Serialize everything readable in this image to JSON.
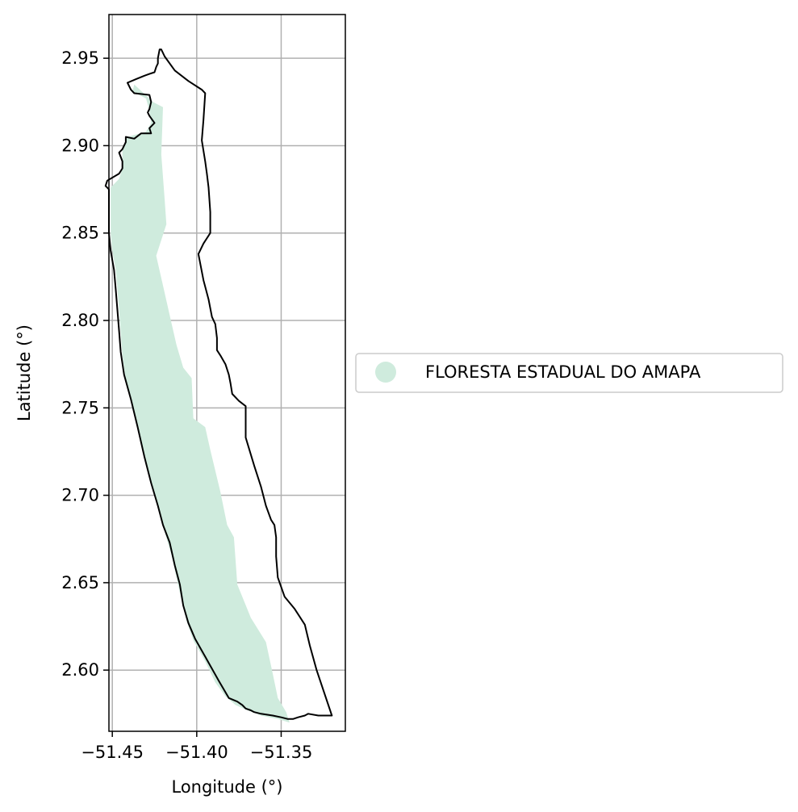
{
  "chart_data": {
    "type": "map",
    "xlabel": "Longitude (°)",
    "ylabel": "Latitude (°)",
    "xlim": [
      -51.452,
      -51.312
    ],
    "ylim": [
      2.565,
      2.975
    ],
    "x_ticks": [
      {
        "value": -51.45,
        "label": "−51.45"
      },
      {
        "value": -51.4,
        "label": "−51.40"
      },
      {
        "value": -51.35,
        "label": "−51.35"
      }
    ],
    "y_ticks": [
      {
        "value": 2.6,
        "label": "2.60"
      },
      {
        "value": 2.65,
        "label": "2.65"
      },
      {
        "value": 2.7,
        "label": "2.70"
      },
      {
        "value": 2.75,
        "label": "2.75"
      },
      {
        "value": 2.8,
        "label": "2.80"
      },
      {
        "value": 2.85,
        "label": "2.85"
      },
      {
        "value": 2.9,
        "label": "2.90"
      },
      {
        "value": 2.95,
        "label": "2.95"
      }
    ],
    "grid": true,
    "legend": {
      "placement": "right",
      "entries": [
        {
          "label": "FLORESTA ESTADUAL DO AMAPA",
          "color": "#cfebdd"
        }
      ]
    },
    "layers": [
      {
        "name": "boundary",
        "color": "#000000",
        "fill": "none",
        "coords": [
          [
            -51.421,
            2.955
          ],
          [
            -51.419,
            2.951
          ],
          [
            -51.413,
            2.943
          ],
          [
            -51.405,
            2.937
          ],
          [
            -51.397,
            2.932
          ],
          [
            -51.395,
            2.93
          ],
          [
            -51.396,
            2.915
          ],
          [
            -51.397,
            2.903
          ],
          [
            -51.395,
            2.891
          ],
          [
            -51.394,
            2.884
          ],
          [
            -51.393,
            2.876
          ],
          [
            -51.392,
            2.862
          ],
          [
            -51.392,
            2.85
          ],
          [
            -51.396,
            2.844
          ],
          [
            -51.399,
            2.838
          ],
          [
            -51.398,
            2.833
          ],
          [
            -51.396,
            2.823
          ],
          [
            -51.393,
            2.812
          ],
          [
            -51.391,
            2.802
          ],
          [
            -51.389,
            2.798
          ],
          [
            -51.388,
            2.79
          ],
          [
            -51.388,
            2.783
          ],
          [
            -51.386,
            2.78
          ],
          [
            -51.383,
            2.775
          ],
          [
            -51.381,
            2.769
          ],
          [
            -51.38,
            2.764
          ],
          [
            -51.379,
            2.758
          ],
          [
            -51.375,
            2.754
          ],
          [
            -51.371,
            2.751
          ],
          [
            -51.371,
            2.733
          ],
          [
            -51.366,
            2.717
          ],
          [
            -51.362,
            2.705
          ],
          [
            -51.359,
            2.694
          ],
          [
            -51.356,
            2.686
          ],
          [
            -51.354,
            2.683
          ],
          [
            -51.353,
            2.676
          ],
          [
            -51.353,
            2.665
          ],
          [
            -51.352,
            2.653
          ],
          [
            -51.348,
            2.642
          ],
          [
            -51.342,
            2.635
          ],
          [
            -51.336,
            2.626
          ],
          [
            -51.333,
            2.614
          ],
          [
            -51.329,
            2.6
          ],
          [
            -51.32,
            2.574
          ],
          [
            -51.328,
            2.574
          ],
          [
            -51.334,
            2.575
          ],
          [
            -51.336,
            2.574
          ],
          [
            -51.34,
            2.573
          ],
          [
            -51.343,
            2.572
          ],
          [
            -51.346,
            2.572
          ],
          [
            -51.35,
            2.573
          ],
          [
            -51.355,
            2.574
          ],
          [
            -51.362,
            2.575
          ],
          [
            -51.366,
            2.576
          ],
          [
            -51.368,
            2.577
          ],
          [
            -51.371,
            2.578
          ],
          [
            -51.373,
            2.58
          ],
          [
            -51.376,
            2.582
          ],
          [
            -51.381,
            2.584
          ],
          [
            -51.387,
            2.594
          ],
          [
            -51.394,
            2.606
          ],
          [
            -51.401,
            2.618
          ],
          [
            -51.405,
            2.627
          ],
          [
            -51.408,
            2.637
          ],
          [
            -51.41,
            2.649
          ],
          [
            -51.413,
            2.66
          ],
          [
            -51.416,
            2.673
          ],
          [
            -51.42,
            2.683
          ],
          [
            -51.423,
            2.694
          ],
          [
            -51.427,
            2.707
          ],
          [
            -51.431,
            2.722
          ],
          [
            -51.435,
            2.739
          ],
          [
            -51.439,
            2.755
          ],
          [
            -51.443,
            2.769
          ],
          [
            -51.445,
            2.782
          ],
          [
            -51.446,
            2.794
          ],
          [
            -51.447,
            2.806
          ],
          [
            -51.448,
            2.818
          ],
          [
            -51.449,
            2.829
          ],
          [
            -51.451,
            2.84
          ],
          [
            -51.452,
            2.85
          ],
          [
            -51.452,
            2.86
          ],
          [
            -51.452,
            2.87
          ],
          [
            -51.452,
            2.875
          ],
          [
            -51.454,
            2.877
          ],
          [
            -51.453,
            2.88
          ],
          [
            -51.446,
            2.884
          ],
          [
            -51.444,
            2.887
          ],
          [
            -51.444,
            2.891
          ],
          [
            -51.446,
            2.896
          ],
          [
            -51.444,
            2.898
          ],
          [
            -51.442,
            2.902
          ],
          [
            -51.442,
            2.905
          ],
          [
            -51.437,
            2.904
          ],
          [
            -51.433,
            2.907
          ],
          [
            -51.427,
            2.907
          ],
          [
            -51.428,
            2.91
          ],
          [
            -51.425,
            2.913
          ],
          [
            -51.428,
            2.917
          ],
          [
            -51.429,
            2.919
          ],
          [
            -51.428,
            2.921
          ],
          [
            -51.427,
            2.925
          ],
          [
            -51.428,
            2.929
          ],
          [
            -51.437,
            2.93
          ],
          [
            -51.439,
            2.932
          ],
          [
            -51.441,
            2.936
          ],
          [
            -51.436,
            2.938
          ],
          [
            -51.431,
            2.94
          ],
          [
            -51.428,
            2.941
          ],
          [
            -51.425,
            2.942
          ],
          [
            -51.424,
            2.945
          ],
          [
            -51.423,
            2.947
          ],
          [
            -51.423,
            2.95
          ],
          [
            -51.422,
            2.955
          ]
        ]
      },
      {
        "name": "FLORESTA ESTADUAL DO AMAPA",
        "color": "#cfebdd",
        "fill": "#cfebdd",
        "coords": [
          [
            -51.437,
            2.935
          ],
          [
            -51.426,
            2.925
          ],
          [
            -51.42,
            2.922
          ],
          [
            -51.421,
            2.895
          ],
          [
            -51.419,
            2.869
          ],
          [
            -51.418,
            2.855
          ],
          [
            -51.421,
            2.846
          ],
          [
            -51.424,
            2.837
          ],
          [
            -51.42,
            2.82
          ],
          [
            -51.416,
            2.803
          ],
          [
            -51.412,
            2.786
          ],
          [
            -51.408,
            2.773
          ],
          [
            -51.403,
            2.767
          ],
          [
            -51.402,
            2.744
          ],
          [
            -51.395,
            2.739
          ],
          [
            -51.392,
            2.726
          ],
          [
            -51.386,
            2.702
          ],
          [
            -51.382,
            2.683
          ],
          [
            -51.378,
            2.676
          ],
          [
            -51.376,
            2.649
          ],
          [
            -51.368,
            2.63
          ],
          [
            -51.359,
            2.616
          ],
          [
            -51.355,
            2.598
          ],
          [
            -51.352,
            2.584
          ],
          [
            -51.347,
            2.576
          ],
          [
            -51.345,
            2.57
          ],
          [
            -51.352,
            2.572
          ],
          [
            -51.362,
            2.574
          ],
          [
            -51.37,
            2.577
          ],
          [
            -51.377,
            2.58
          ],
          [
            -51.383,
            2.585
          ],
          [
            -51.389,
            2.593
          ],
          [
            -51.395,
            2.605
          ],
          [
            -51.402,
            2.617
          ],
          [
            -51.406,
            2.628
          ],
          [
            -51.409,
            2.64
          ],
          [
            -51.412,
            2.653
          ],
          [
            -51.415,
            2.666
          ],
          [
            -51.419,
            2.679
          ],
          [
            -51.422,
            2.69
          ],
          [
            -51.426,
            2.704
          ],
          [
            -51.43,
            2.719
          ],
          [
            -51.434,
            2.735
          ],
          [
            -51.438,
            2.751
          ],
          [
            -51.442,
            2.766
          ],
          [
            -51.444,
            2.78
          ],
          [
            -51.445,
            2.793
          ],
          [
            -51.446,
            2.806
          ],
          [
            -51.447,
            2.818
          ],
          [
            -51.448,
            2.829
          ],
          [
            -51.45,
            2.84
          ],
          [
            -51.451,
            2.85
          ],
          [
            -51.451,
            2.87
          ],
          [
            -51.451,
            2.876
          ],
          [
            -51.446,
            2.881
          ],
          [
            -51.444,
            2.887
          ],
          [
            -51.444,
            2.898
          ],
          [
            -51.441,
            2.905
          ],
          [
            -51.43,
            2.908
          ],
          [
            -51.427,
            2.913
          ],
          [
            -51.428,
            2.92
          ],
          [
            -51.43,
            2.927
          ],
          [
            -51.438,
            2.931
          ]
        ]
      }
    ]
  }
}
